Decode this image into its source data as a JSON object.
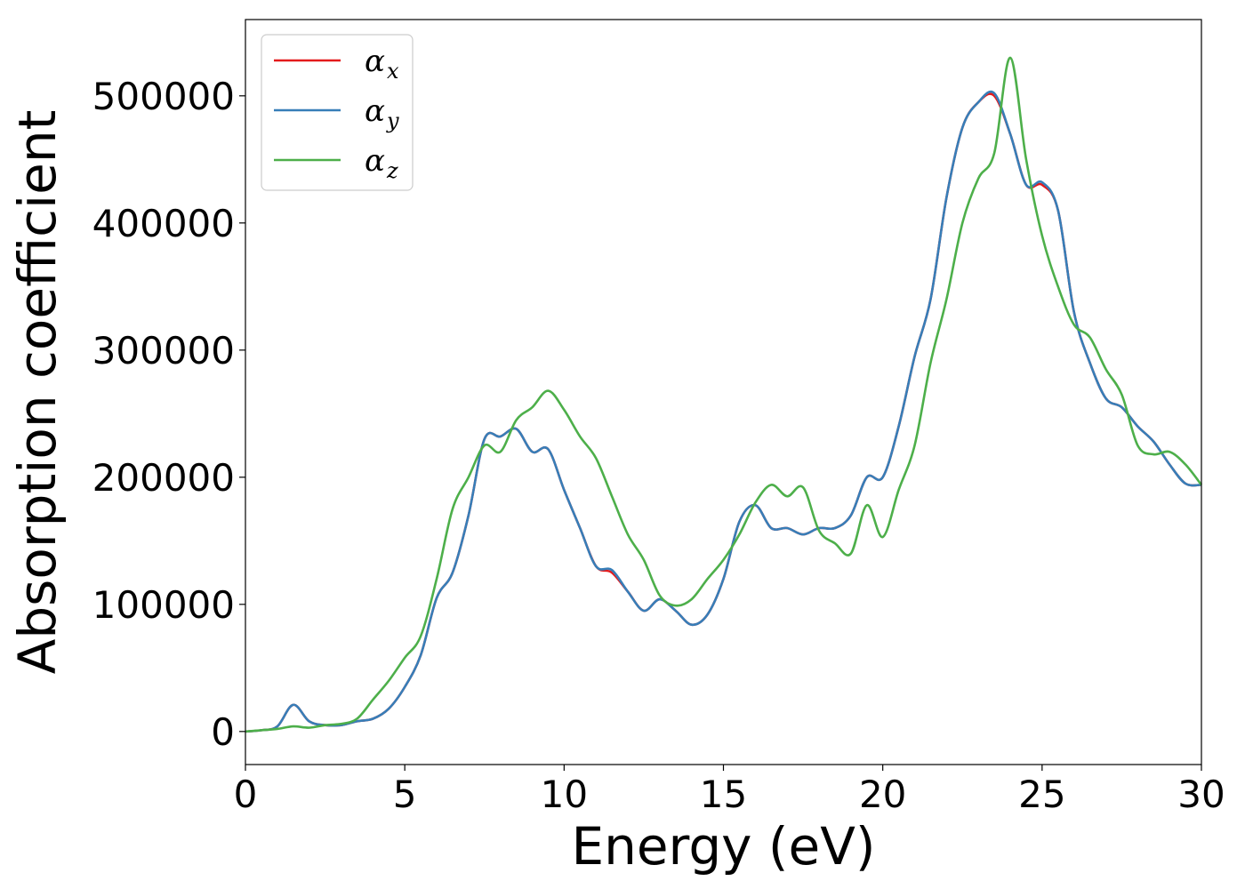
{
  "chart_data": {
    "type": "line",
    "xlabel": "Energy (eV)",
    "ylabel": "Absorption coefficient",
    "xlim": [
      0,
      30
    ],
    "ylim": [
      -26000,
      560000
    ],
    "xticks": [
      0,
      5,
      10,
      15,
      20,
      25,
      30
    ],
    "yticks": [
      0,
      100000,
      200000,
      300000,
      400000,
      500000
    ],
    "grid": false,
    "legend_position": "top-left",
    "series": [
      {
        "name": "α_x",
        "legend_symbol": "α",
        "legend_sub": "x",
        "color": "#e41a1c",
        "x": [
          0,
          0.5,
          1.0,
          1.5,
          2.0,
          2.5,
          3.0,
          3.5,
          4.0,
          4.5,
          5.0,
          5.5,
          6.0,
          6.5,
          7.0,
          7.5,
          8.0,
          8.5,
          9.0,
          9.5,
          10.0,
          10.5,
          11.0,
          11.5,
          12.0,
          12.5,
          13.0,
          13.5,
          14.0,
          14.5,
          15.0,
          15.5,
          16.0,
          16.5,
          17.0,
          17.5,
          18.0,
          18.5,
          19.0,
          19.5,
          20.0,
          20.5,
          21.0,
          21.5,
          22.0,
          22.5,
          23.0,
          23.5,
          24.0,
          24.5,
          25.0,
          25.5,
          26.0,
          26.5,
          27.0,
          27.5,
          28.0,
          28.5,
          29.0,
          29.5,
          30.0
        ],
        "y": [
          0,
          1000,
          4000,
          21000,
          8000,
          5000,
          5000,
          8000,
          10000,
          18000,
          35000,
          60000,
          105000,
          125000,
          170000,
          230000,
          232000,
          238000,
          220000,
          222000,
          190000,
          160000,
          130000,
          125000,
          110000,
          95000,
          104000,
          95000,
          84000,
          92000,
          120000,
          165000,
          178000,
          160000,
          160000,
          155000,
          160000,
          160000,
          170000,
          200000,
          200000,
          240000,
          295000,
          340000,
          420000,
          475000,
          495000,
          500000,
          470000,
          430000,
          430000,
          410000,
          330000,
          290000,
          262000,
          255000,
          240000,
          228000,
          210000,
          195000,
          194000
        ]
      },
      {
        "name": "α_y",
        "legend_symbol": "α",
        "legend_sub": "y",
        "color": "#377eb8",
        "x": [
          0,
          0.5,
          1.0,
          1.5,
          2.0,
          2.5,
          3.0,
          3.5,
          4.0,
          4.5,
          5.0,
          5.5,
          6.0,
          6.5,
          7.0,
          7.5,
          8.0,
          8.5,
          9.0,
          9.5,
          10.0,
          10.5,
          11.0,
          11.5,
          12.0,
          12.5,
          13.0,
          13.5,
          14.0,
          14.5,
          15.0,
          15.5,
          16.0,
          16.5,
          17.0,
          17.5,
          18.0,
          18.5,
          19.0,
          19.5,
          20.0,
          20.5,
          21.0,
          21.5,
          22.0,
          22.5,
          23.0,
          23.5,
          24.0,
          24.5,
          25.0,
          25.5,
          26.0,
          26.5,
          27.0,
          27.5,
          28.0,
          28.5,
          29.0,
          29.5,
          30.0
        ],
        "y": [
          0,
          1000,
          4000,
          21000,
          8000,
          5000,
          5000,
          8000,
          10000,
          18000,
          35000,
          60000,
          105000,
          125000,
          170000,
          230000,
          232000,
          238000,
          220000,
          222000,
          190000,
          160000,
          130000,
          127000,
          110000,
          95000,
          104000,
          95000,
          84000,
          92000,
          120000,
          165000,
          178000,
          160000,
          160000,
          155000,
          160000,
          160000,
          170000,
          200000,
          200000,
          240000,
          295000,
          340000,
          420000,
          475000,
          495000,
          502000,
          470000,
          430000,
          432000,
          410000,
          330000,
          290000,
          262000,
          255000,
          240000,
          228000,
          210000,
          195000,
          194000
        ]
      },
      {
        "name": "α_z",
        "legend_symbol": "α",
        "legend_sub": "z",
        "color": "#4daf4a",
        "x": [
          0,
          0.5,
          1.0,
          1.5,
          2.0,
          2.5,
          3.0,
          3.5,
          4.0,
          4.5,
          5.0,
          5.5,
          6.0,
          6.5,
          7.0,
          7.5,
          8.0,
          8.5,
          9.0,
          9.5,
          10.0,
          10.5,
          11.0,
          11.5,
          12.0,
          12.5,
          13.0,
          13.5,
          14.0,
          14.5,
          15.0,
          15.5,
          16.0,
          16.5,
          17.0,
          17.5,
          18.0,
          18.5,
          19.0,
          19.5,
          20.0,
          20.5,
          21.0,
          21.5,
          22.0,
          22.5,
          23.0,
          23.5,
          24.0,
          24.5,
          25.0,
          25.5,
          26.0,
          26.5,
          27.0,
          27.5,
          28.0,
          28.5,
          29.0,
          29.5,
          30.0
        ],
        "y": [
          0,
          1000,
          2000,
          4000,
          3000,
          5000,
          6000,
          10000,
          25000,
          40000,
          58000,
          75000,
          120000,
          175000,
          200000,
          225000,
          220000,
          245000,
          255000,
          268000,
          253000,
          232000,
          215000,
          185000,
          155000,
          135000,
          107000,
          99000,
          104000,
          120000,
          135000,
          155000,
          180000,
          194000,
          185000,
          192000,
          158000,
          148000,
          140000,
          178000,
          153000,
          190000,
          225000,
          290000,
          340000,
          400000,
          435000,
          455000,
          530000,
          450000,
          390000,
          350000,
          320000,
          310000,
          285000,
          265000,
          225000,
          218000,
          220000,
          210000,
          194000
        ]
      }
    ]
  }
}
